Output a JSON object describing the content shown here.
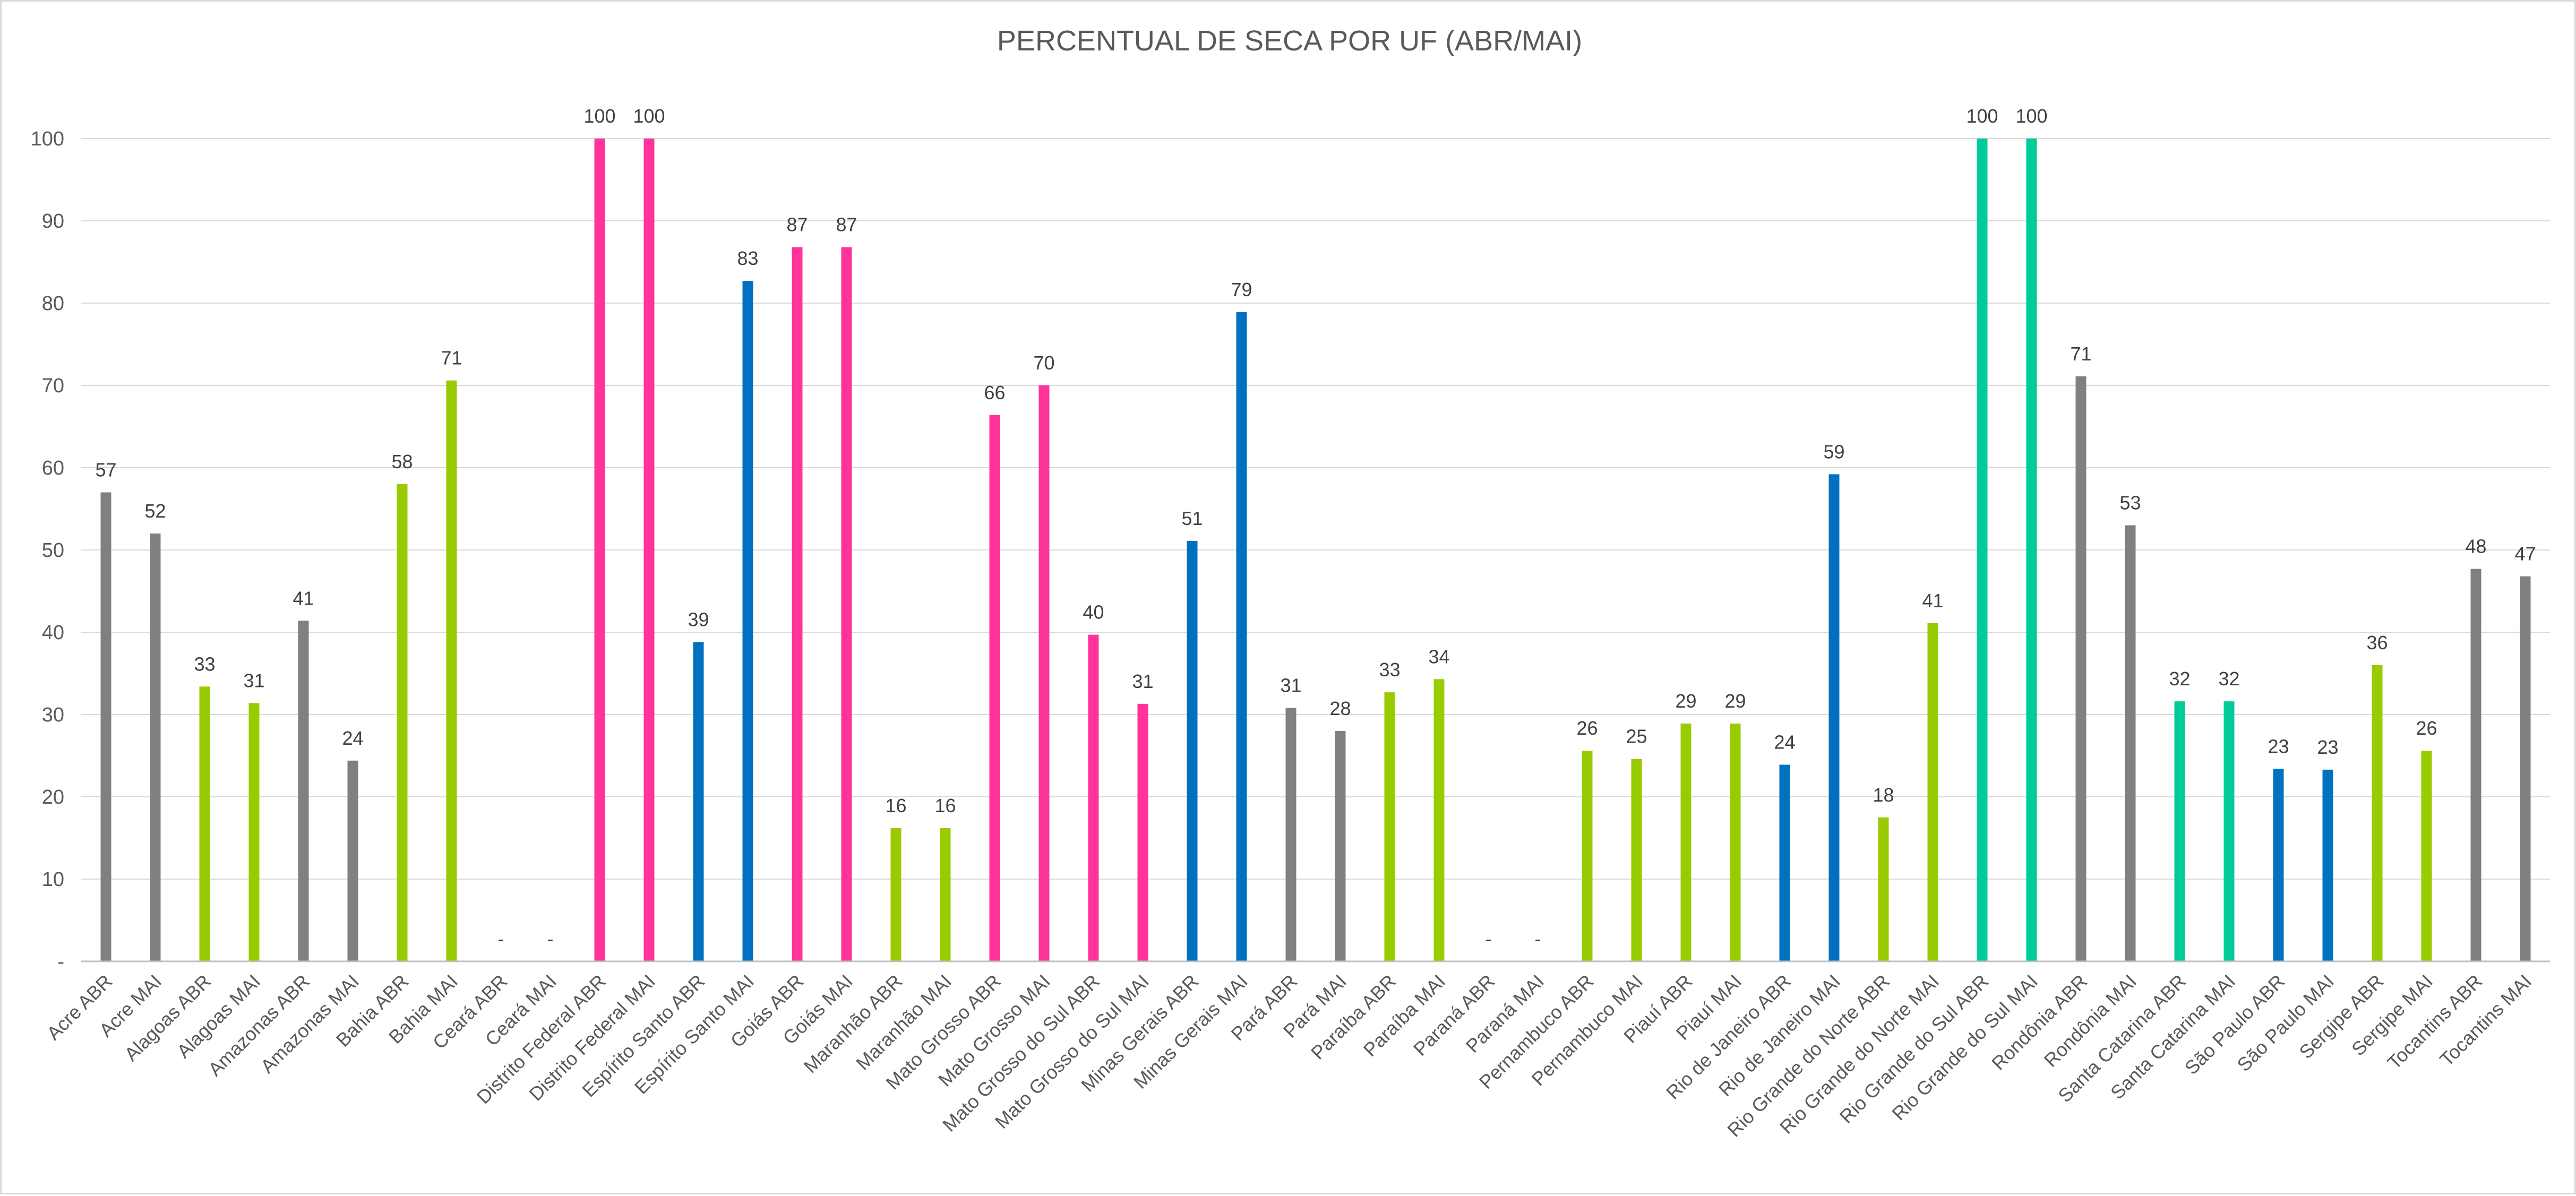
{
  "chart_data": {
    "type": "bar",
    "title": "PERCENTUAL DE SECA POR UF (ABR/MAI)",
    "xlabel": "",
    "ylabel": "",
    "ylim": [
      0,
      100
    ],
    "y_ticks": [
      "-",
      "10",
      "20",
      "30",
      "40",
      "50",
      "60",
      "70",
      "80",
      "90",
      "100"
    ],
    "grid": true,
    "legend": "none",
    "colors": {
      "grey": "#808080",
      "lime": "#99cc00",
      "pink": "#ff3399",
      "blue": "#0070c0",
      "teal": "#00cc99"
    },
    "categories": [
      "Acre ABR",
      "Acre MAI",
      "Alagoas ABR",
      "Alagoas MAI",
      "Amazonas ABR",
      "Amazonas MAI",
      "Bahia ABR",
      "Bahia MAI",
      "Ceará ABR",
      "Ceará MAI",
      "Distrito Federal ABR",
      "Distrito Federal MAI",
      "Espírito Santo ABR",
      "Espírito Santo MAI",
      "Goiás ABR",
      "Goiás MAI",
      "Maranhão ABR",
      "Maranhão MAI",
      "Mato Grosso ABR",
      "Mato Grosso MAI",
      "Mato Grosso do Sul ABR",
      "Mato Grosso do Sul MAI",
      "Minas Gerais ABR",
      "Minas Gerais MAI",
      "Pará ABR",
      "Pará MAI",
      "Paraíba ABR",
      "Paraíba MAI",
      "Paraná ABR",
      "Paraná MAI",
      "Pernambuco ABR",
      "Pernambuco MAI",
      "Piauí ABR",
      "Piauí MAI",
      "Rio de Janeiro ABR",
      "Rio de Janeiro MAI",
      "Rio Grande do Norte ABR",
      "Rio Grande do Norte MAI",
      "Rio Grande do Sul ABR",
      "Rio Grande do Sul MAI",
      "Rondônia ABR",
      "Rondônia MAI",
      "Santa Catarina ABR",
      "Santa Catarina MAI",
      "São Paulo ABR",
      "São Paulo MAI",
      "Sergipe ABR",
      "Sergipe MAI",
      "Tocantins ABR",
      "Tocantins MAI"
    ],
    "values": [
      57,
      52,
      33.4,
      31.4,
      41.4,
      24.4,
      58,
      70.6,
      0,
      0,
      100,
      100,
      38.8,
      82.7,
      86.8,
      86.8,
      16.2,
      16.2,
      66.4,
      70,
      39.7,
      31.3,
      51.1,
      78.9,
      30.8,
      28,
      32.7,
      34.3,
      0,
      0,
      25.6,
      24.6,
      28.9,
      28.9,
      23.9,
      59.2,
      17.5,
      41.1,
      100,
      100,
      71.1,
      53,
      31.6,
      31.6,
      23.4,
      23.3,
      36,
      25.6,
      47.7,
      46.8
    ],
    "data_labels": [
      "57",
      "52",
      "33",
      "31",
      "41",
      "24",
      "58",
      "71",
      "-",
      "-",
      "100",
      "100",
      "39",
      "83",
      "87",
      "87",
      "16",
      "16",
      "66",
      "70",
      "40",
      "31",
      "51",
      "79",
      "31",
      "28",
      "33",
      "34",
      "-",
      "-",
      "26",
      "25",
      "29",
      "29",
      "24",
      "59",
      "18",
      "41",
      "100",
      "100",
      "71",
      "53",
      "32",
      "32",
      "23",
      "23",
      "36",
      "26",
      "48",
      "47"
    ],
    "bar_colors": [
      "grey",
      "grey",
      "lime",
      "lime",
      "grey",
      "grey",
      "lime",
      "lime",
      "grey",
      "grey",
      "pink",
      "pink",
      "blue",
      "blue",
      "pink",
      "pink",
      "lime",
      "lime",
      "pink",
      "pink",
      "pink",
      "pink",
      "blue",
      "blue",
      "grey",
      "grey",
      "lime",
      "lime",
      "lime",
      "lime",
      "lime",
      "lime",
      "lime",
      "lime",
      "blue",
      "blue",
      "lime",
      "lime",
      "teal",
      "teal",
      "grey",
      "grey",
      "teal",
      "teal",
      "blue",
      "blue",
      "lime",
      "lime",
      "grey",
      "grey"
    ]
  }
}
